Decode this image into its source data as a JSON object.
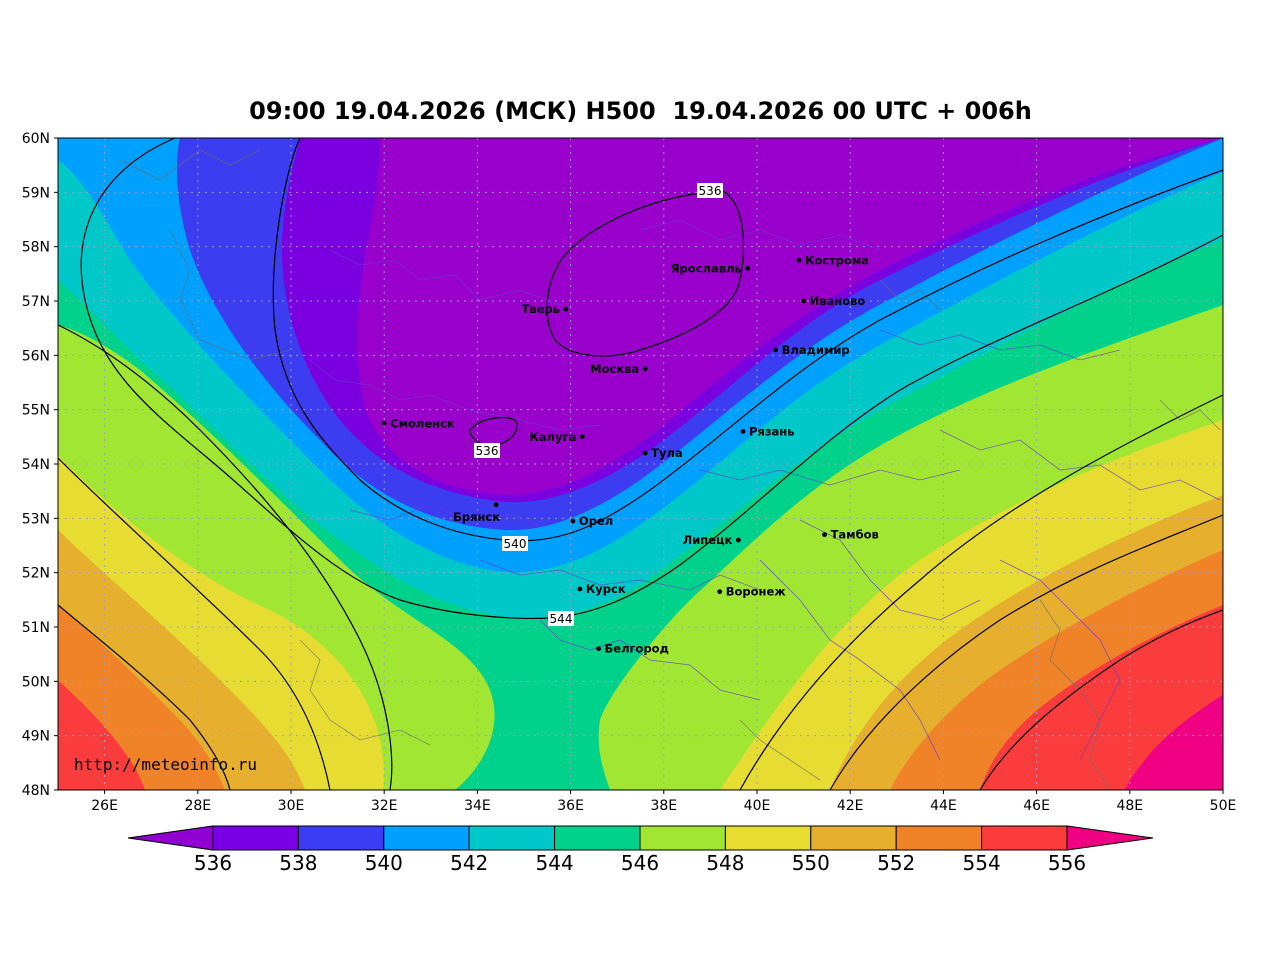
{
  "title": "09:00 19.04.2026 (МСК) H500  19.04.2026 00 UTC + 006h",
  "watermark": "http://meteoinfo.ru",
  "lat_labels": [
    "60N",
    "59N",
    "58N",
    "57N",
    "56N",
    "55N",
    "54N",
    "53N",
    "52N",
    "51N",
    "50N",
    "49N",
    "48N"
  ],
  "lon_labels": [
    "26E",
    "28E",
    "30E",
    "32E",
    "34E",
    "36E",
    "38E",
    "40E",
    "42E",
    "44E",
    "46E",
    "48E",
    "50E"
  ],
  "cities": [
    {
      "name": "Ярославль",
      "lon": 39.8,
      "lat": 57.6,
      "side": "left"
    },
    {
      "name": "Кострома",
      "lon": 40.9,
      "lat": 57.75,
      "side": "right"
    },
    {
      "name": "Иваново",
      "lon": 41.0,
      "lat": 57.0,
      "side": "right"
    },
    {
      "name": "Тверь",
      "lon": 35.9,
      "lat": 56.85,
      "side": "left"
    },
    {
      "name": "Владимир",
      "lon": 40.4,
      "lat": 56.1,
      "side": "right"
    },
    {
      "name": "Москва",
      "lon": 37.6,
      "lat": 55.75,
      "side": "left"
    },
    {
      "name": "Смоленск",
      "lon": 32.0,
      "lat": 54.75,
      "side": "right"
    },
    {
      "name": "Калуга",
      "lon": 36.25,
      "lat": 54.5,
      "side": "left"
    },
    {
      "name": "Рязань",
      "lon": 39.7,
      "lat": 54.6,
      "side": "right"
    },
    {
      "name": "Тула",
      "lon": 37.6,
      "lat": 54.2,
      "side": "right"
    },
    {
      "name": "Брянск",
      "lon": 34.4,
      "lat": 53.25,
      "side": "belowleft"
    },
    {
      "name": "Орел",
      "lon": 36.05,
      "lat": 52.95,
      "side": "right"
    },
    {
      "name": "Липецк",
      "lon": 39.6,
      "lat": 52.6,
      "side": "left"
    },
    {
      "name": "Тамбов",
      "lon": 41.45,
      "lat": 52.7,
      "side": "right"
    },
    {
      "name": "Курск",
      "lon": 36.2,
      "lat": 51.7,
      "side": "right"
    },
    {
      "name": "Воронеж",
      "lon": 39.2,
      "lat": 51.65,
      "side": "right"
    },
    {
      "name": "Белгород",
      "lon": 36.6,
      "lat": 50.6,
      "side": "right"
    }
  ],
  "contour_labels": [
    "536",
    "536",
    "540",
    "544"
  ],
  "colorbar": {
    "labels": [
      "536",
      "538",
      "540",
      "542",
      "544",
      "546",
      "548",
      "550",
      "552",
      "554",
      "556"
    ],
    "colors": [
      "#9000d0",
      "#7a00e6",
      "#3c3cf5",
      "#00a0ff",
      "#00c8c8",
      "#00d28c",
      "#a0e632",
      "#e6dc32",
      "#e6af2d",
      "#f08228",
      "#fa3c3c",
      "#f00082"
    ]
  },
  "band_colors": {
    "b536": "#9900cc",
    "b538": "#7b00e0",
    "b540": "#3c3cf0",
    "b542": "#00a0ff",
    "b544": "#00c8c8",
    "b546": "#00d28c",
    "b548": "#a0e632",
    "b550": "#e6dc32",
    "b552": "#e6af2d",
    "b554": "#f08228",
    "b556": "#fa3c3c",
    "b558": "#f00082"
  }
}
